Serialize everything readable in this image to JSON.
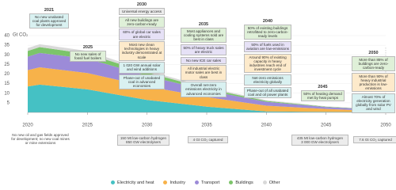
{
  "chart_data": {
    "type": "stacked-area",
    "ylabel": "Gt CO₂",
    "x": [
      2020,
      2021,
      2025,
      2030,
      2035,
      2040,
      2045,
      2050
    ],
    "xlim": [
      2020,
      2050
    ],
    "xticks": [
      2020,
      2025,
      2030,
      2035,
      2040,
      2045,
      2050
    ],
    "ylim": [
      0,
      40
    ],
    "yticks": [
      5,
      10,
      15,
      20,
      25,
      30,
      35,
      40
    ],
    "series": [
      {
        "name": "Electricity and heat",
        "color": "#45c1c4",
        "values": [
          13.5,
          14.5,
          12,
          6.5,
          3,
          0.5,
          0.3,
          0.1
        ]
      },
      {
        "name": "Industry",
        "color": "#f7b24a",
        "values": [
          8.5,
          9,
          8.5,
          7,
          5,
          3,
          1.5,
          0.5
        ]
      },
      {
        "name": "Transport",
        "color": "#9c8bd8",
        "values": [
          7,
          7.5,
          7.5,
          5.5,
          3.5,
          2,
          1,
          0.7
        ]
      },
      {
        "name": "Buildings",
        "color": "#7cc46a",
        "values": [
          3,
          3,
          2.5,
          1.8,
          1,
          0.5,
          0.2,
          0.1
        ]
      },
      {
        "name": "Other",
        "color": "#d9d9d9",
        "values": [
          1.5,
          1.5,
          1.5,
          1,
          0.7,
          0.4,
          0.2,
          0.1
        ]
      }
    ],
    "annotations": [
      {
        "year": 2021,
        "items": [
          {
            "text": "No new unabated coal plants approved for development",
            "color": "#d9f1f1"
          }
        ]
      },
      {
        "year": 2025,
        "items": [
          {
            "text": "No new sales of fossil fuel boilers",
            "color": "#dff0d8"
          }
        ]
      },
      {
        "year": 2030,
        "items": [
          {
            "text": "Universal energy access",
            "color": "#ececec"
          },
          {
            "text": "All new buildings are zero-carbon-ready",
            "color": "#dff0d8"
          },
          {
            "text": "60% of global car sales are electric",
            "color": "#e6e1f6"
          },
          {
            "text": "Most new clean technologies in heavy industry demonstrated at scale",
            "color": "#fdeacb"
          },
          {
            "text": "1 020 GW annual solar and wind additions",
            "color": "#d9f1f1"
          },
          {
            "text": "Phase-out of unabated coal in advanced economies",
            "color": "#d9f1f1"
          }
        ]
      },
      {
        "year": 2035,
        "items": [
          {
            "text": "Most appliances and cooling systems sold are best in class",
            "color": "#dff0d8"
          },
          {
            "text": "50% of heavy truck sales are electric",
            "color": "#e6e1f6"
          },
          {
            "text": "No new ICE car sales",
            "color": "#e6e1f6"
          },
          {
            "text": "All industrial electric motor sales are best in class",
            "color": "#fdeacb"
          },
          {
            "text": "Overall net-zero emissions electricity in advanced economies",
            "color": "#d9f1f1"
          }
        ]
      },
      {
        "year": 2040,
        "items": [
          {
            "text": "50% of existing buildings retrofitted to zero-carbon-ready levels",
            "color": "#dff0d8"
          },
          {
            "text": "50% of fuels used in aviation are low-emissions",
            "color": "#e6e1f6"
          },
          {
            "text": "Around 90% of existing capacity in heavy industries reach end of investment cycle",
            "color": "#fdeacb"
          },
          {
            "text": "Net-zero emissions electricity globally",
            "color": "#d9f1f1"
          },
          {
            "text": "Phase-out of all unabated coal and oil power plants",
            "color": "#d9f1f1"
          }
        ]
      },
      {
        "year": 2045,
        "items": [
          {
            "text": "50% of heating demand met by heat pumps",
            "color": "#dff0d8"
          }
        ]
      },
      {
        "year": 2050,
        "items": [
          {
            "text": "More than 85% of buildings are zero-carbon-ready",
            "color": "#dff0d8"
          },
          {
            "text": "More than 90% of heavy industrial production is low-emissions",
            "color": "#fdeacb"
          },
          {
            "text": "Almost 70% of electricity generation globally from solar PV and wind",
            "color": "#d9f1f1"
          }
        ]
      }
    ],
    "notes": [
      {
        "lines": [
          "No new oil and gas fields approved for development; no new coal mines or mine extensions"
        ]
      },
      {
        "lines": [
          "150 Mt low-carbon hydrogen",
          "850 GW electrolysers"
        ]
      },
      {
        "lines": [
          "4 Gt CO₂ captured"
        ]
      },
      {
        "lines": [
          "435 Mt low-carbon hydrogen",
          "3 000 GW electrolysers"
        ]
      },
      {
        "lines": [
          "7.6 Gt CO₂ captured"
        ]
      }
    ]
  }
}
